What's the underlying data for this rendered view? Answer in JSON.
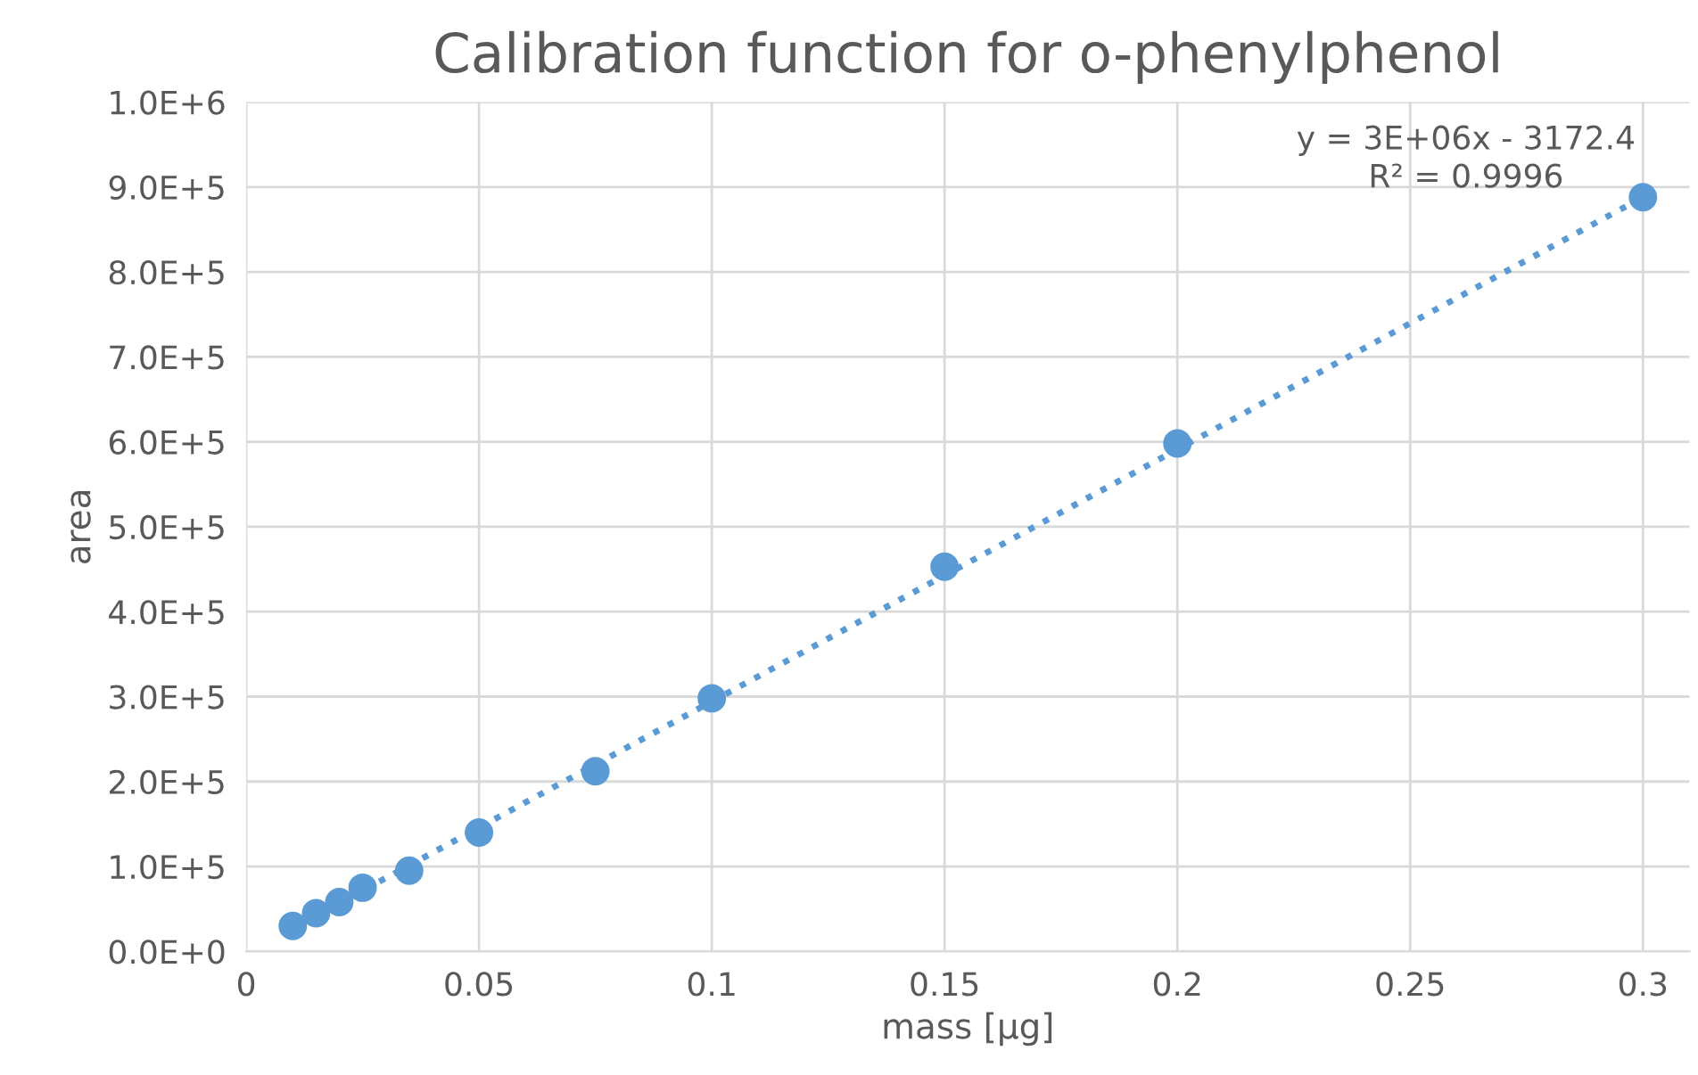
{
  "chart_data": {
    "type": "scatter",
    "title": "Calibration function for o-phenylphenol",
    "xlabel": "mass [µg]",
    "ylabel": "area",
    "series": [
      {
        "color": "#5b9bd5",
        "marker": "circle",
        "x": [
          0.01,
          0.015,
          0.02,
          0.025,
          0.035,
          0.05,
          0.075,
          0.1,
          0.15,
          0.2,
          0.3
        ],
        "values": [
          30000,
          45000,
          58000,
          75000,
          95000,
          140000,
          212000,
          298000,
          453000,
          598000,
          888000
        ]
      },
      {
        "type": "line",
        "color": "#5b9bd5",
        "line_style": "dotted",
        "marker": "none",
        "x": [
          0.01,
          0.3
        ],
        "values": [
          27000,
          888000
        ]
      }
    ],
    "annotations": [
      "y = 3E+06x - 3172.4",
      "R² = 0.9996"
    ],
    "xlim": [
      0,
      0.31
    ],
    "xticks": [
      0,
      0.05,
      0.1,
      0.15,
      0.2,
      0.25,
      0.3
    ],
    "ylim": [
      0,
      1000000
    ],
    "yticks": [
      {
        "value": 0,
        "label": "0.0E+0"
      },
      {
        "value": 100000,
        "label": "1.0E+5"
      },
      {
        "value": 200000,
        "label": "2.0E+5"
      },
      {
        "value": 300000,
        "label": "3.0E+5"
      },
      {
        "value": 400000,
        "label": "4.0E+5"
      },
      {
        "value": 500000,
        "label": "5.0E+5"
      },
      {
        "value": 600000,
        "label": "6.0E+5"
      },
      {
        "value": 700000,
        "label": "7.0E+5"
      },
      {
        "value": 800000,
        "label": "8.0E+5"
      },
      {
        "value": 900000,
        "label": "9.0E+5"
      },
      {
        "value": 1000000,
        "label": "1.0E+6"
      }
    ],
    "grid": true,
    "legend": false
  }
}
